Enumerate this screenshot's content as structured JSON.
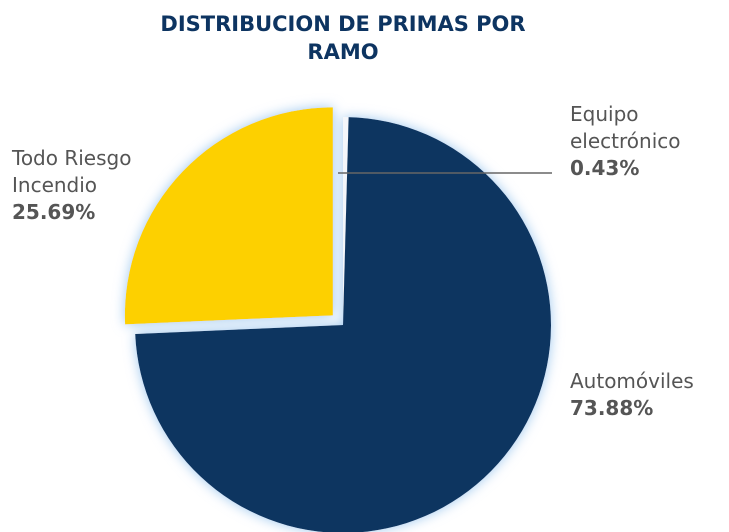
{
  "chart_data": {
    "type": "pie",
    "title": "DISTRIBUCION DE PRIMAS POR RAMO",
    "categories": [
      "Equipo electrónico",
      "Automóviles",
      "Todo Riesgo Incendio"
    ],
    "values": [
      0.43,
      73.88,
      25.69
    ],
    "value_labels": [
      "0.43%",
      "73.88%",
      "25.69%"
    ],
    "colors": [
      "#f4f6fa",
      "#0d3461",
      "#fdd000"
    ]
  }
}
